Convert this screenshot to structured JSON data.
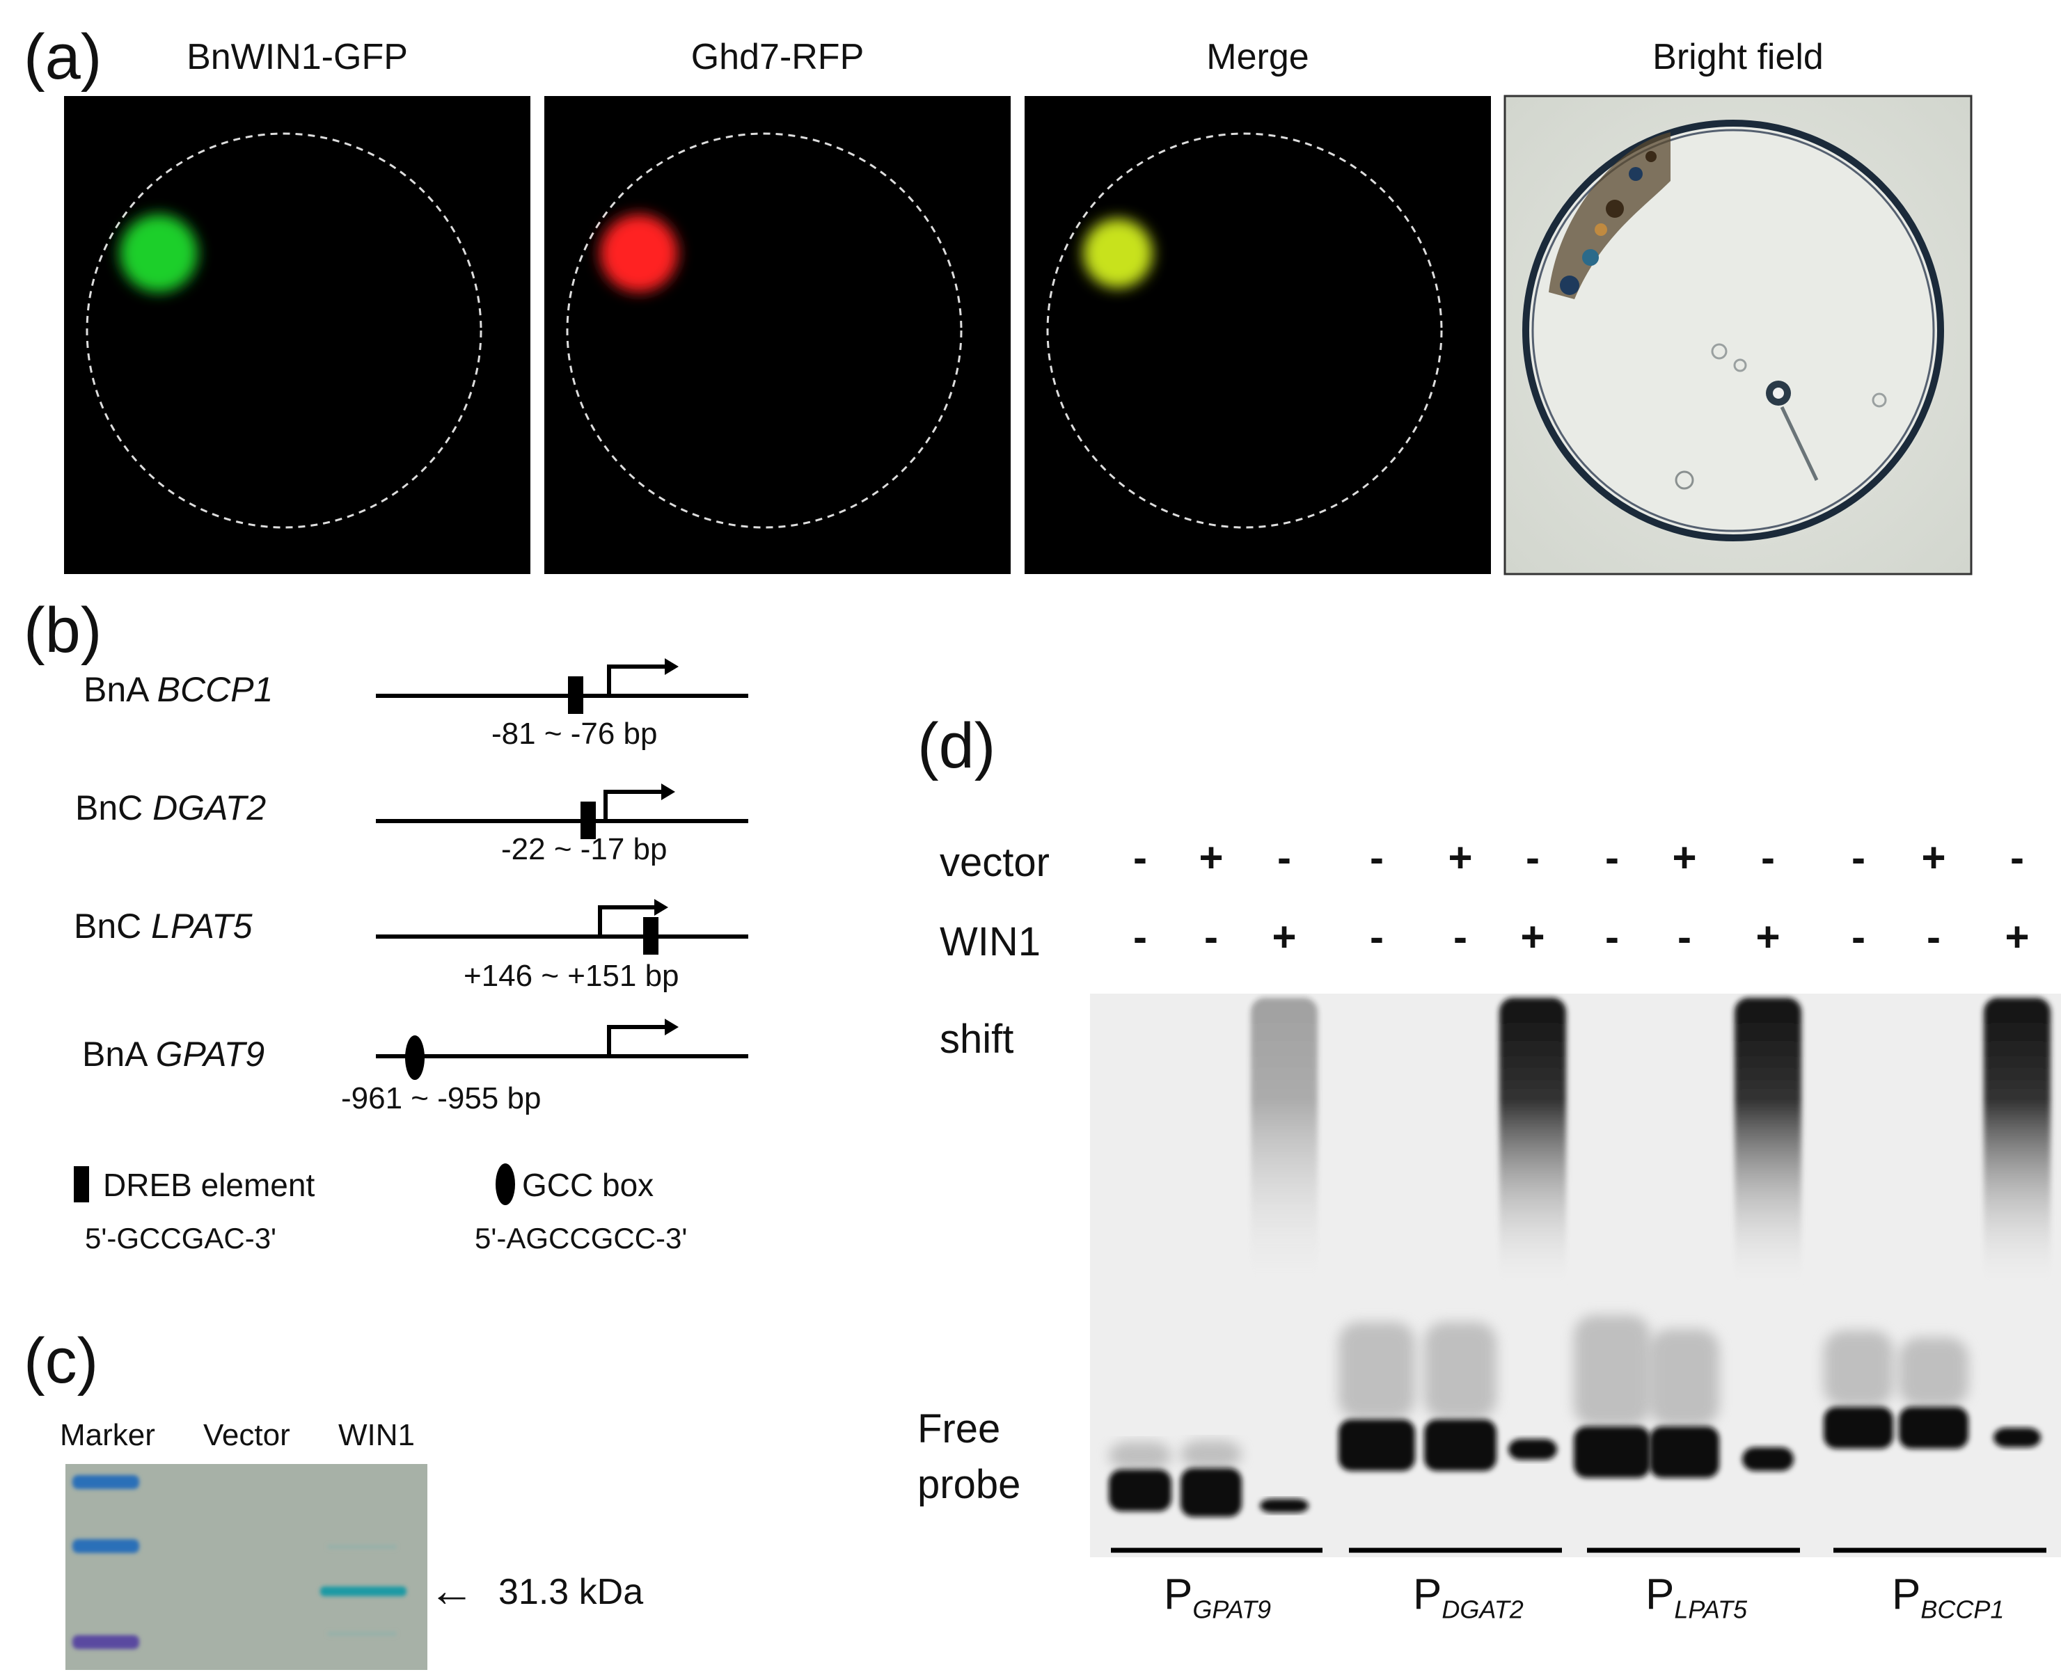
{
  "panel_a": {
    "label": "(a)",
    "titles": [
      "BnWIN1-GFP",
      "Ghd7-RFP",
      "Merge",
      "Bright field"
    ],
    "colors": {
      "gfp": "#1fcf2a",
      "rfp": "#ff2020",
      "merge": "#c8e21a"
    }
  },
  "panel_b": {
    "label": "(b)",
    "genes": [
      {
        "prefix": "BnA ",
        "name": "BCCP1",
        "range": "-81 ~ -76 bp",
        "element": "DREB element"
      },
      {
        "prefix": "BnC ",
        "name": "DGAT2",
        "range": "-22 ~ -17 bp",
        "element": "DREB element"
      },
      {
        "prefix": "BnC ",
        "name": "LPAT5",
        "range": "+146 ~ +151 bp",
        "element": "DREB element"
      },
      {
        "prefix": "BnA ",
        "name": "GPAT9",
        "range": "-961 ~ -955 bp",
        "element": "GCC box"
      }
    ],
    "legend": {
      "dreb_label": "DREB element",
      "dreb_seq": "5'-GCCGAC-3'",
      "gcc_label": "GCC box",
      "gcc_seq": "5'-AGCCGCC-3'"
    }
  },
  "panel_c": {
    "label": "(c)",
    "lanes": [
      "Marker",
      "Vector",
      "WIN1"
    ],
    "band_label": "31.3 kDa",
    "arrow": "←"
  },
  "panel_d": {
    "label": "(d)",
    "row_vector": "vector",
    "row_win1": "WIN1",
    "vector_signs": [
      "-",
      "+",
      "-",
      "-",
      "+",
      "-",
      "-",
      "+",
      "-",
      "-",
      "+",
      "-"
    ],
    "win1_signs": [
      "-",
      "-",
      "+",
      "-",
      "-",
      "+",
      "-",
      "-",
      "+",
      "-",
      "-",
      "+"
    ],
    "shift_label": "shift",
    "free_label_1": "Free",
    "free_label_2": "probe",
    "probes": [
      {
        "p": "P",
        "sub": "GPAT9"
      },
      {
        "p": "P",
        "sub": "DGAT2"
      },
      {
        "p": "P",
        "sub": "LPAT5"
      },
      {
        "p": "P",
        "sub": "BCCP1"
      }
    ]
  }
}
